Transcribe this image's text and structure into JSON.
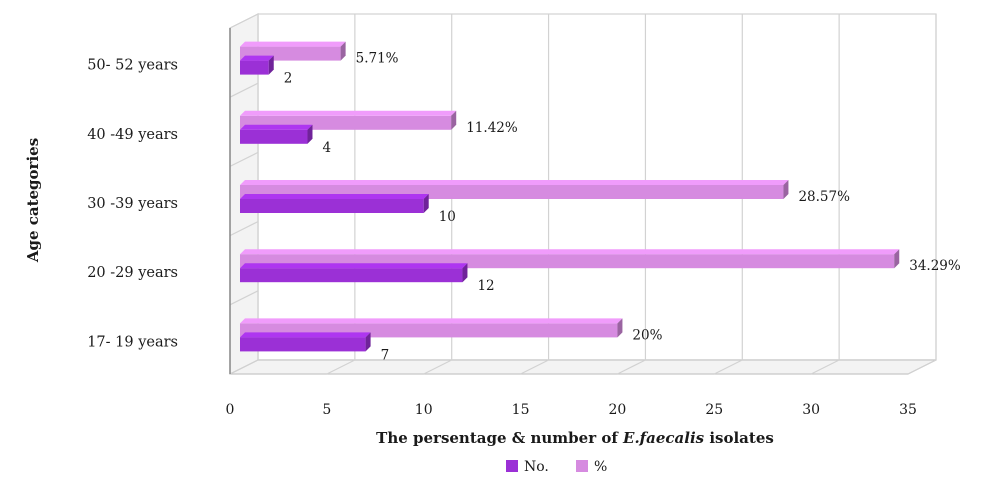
{
  "chart_data": {
    "type": "bar",
    "orientation": "horizontal",
    "style": "3d-clustered",
    "categories": [
      "17- 19 years",
      "20 -29 years",
      "30 -39 years",
      "40 -49 years",
      "50- 52 years"
    ],
    "series": [
      {
        "name": "No.",
        "color": "#9b30d6",
        "values": [
          7,
          12,
          10,
          4,
          2
        ],
        "labels": [
          "7",
          "12",
          "10",
          "4",
          "2"
        ]
      },
      {
        "name": "%",
        "color": "#d68be0",
        "values": [
          20,
          34.29,
          28.57,
          11.42,
          5.71
        ],
        "labels": [
          "20%",
          "34.29%",
          "28.57%",
          "11.42%",
          "5.71%"
        ]
      }
    ],
    "xlabel_prefix": "The persentage & number of ",
    "xlabel_italic": "E.faecalis",
    "xlabel_suffix": " isolates",
    "ylabel": "Age categories",
    "xlim": [
      0,
      35
    ],
    "xticks": [
      "0",
      "5",
      "10",
      "15",
      "20",
      "25",
      "30",
      "35"
    ],
    "grid": true,
    "legend_position": "bottom"
  }
}
